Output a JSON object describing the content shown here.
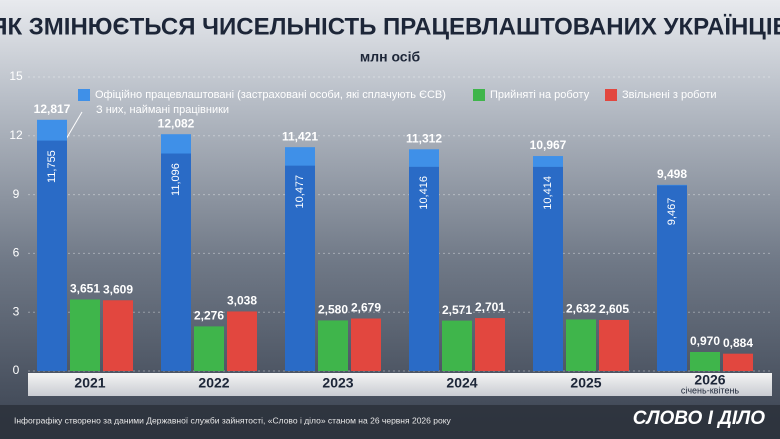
{
  "chart_data": {
    "type": "bar",
    "title": "ЯК ЗМІНЮЄТЬСЯ ЧИСЕЛЬНІСТЬ ПРАЦЕВЛАШТОВАНИХ УКРАЇНЦІВ",
    "subtitle": "млн осіб",
    "categories": [
      "2021",
      "2022",
      "2023",
      "2024",
      "2025",
      "2026"
    ],
    "x_sublabels": [
      null,
      null,
      null,
      null,
      null,
      "січень-квітень"
    ],
    "ylim": [
      0,
      15
    ],
    "yticks": [
      0,
      3,
      6,
      9,
      12,
      15
    ],
    "grid": true,
    "series": [
      {
        "name": "Офіційно працевлаштовані (застраховані особи, які сплачують ЄСВ)",
        "color": "#3f90e8",
        "values": [
          12.817,
          12.082,
          11.421,
          11.312,
          10.967,
          9.498
        ],
        "value_labels": [
          "12,817",
          "12,082",
          "11,421",
          "11,312",
          "10,967",
          "9,498"
        ]
      },
      {
        "name": "З них, наймані працівники",
        "color": "#2a6bc6",
        "overlay": true,
        "values": [
          11.755,
          11.096,
          10.477,
          10.416,
          10.414,
          9.467
        ],
        "value_labels": [
          "11,755",
          "11,096",
          "10,477",
          "10,416",
          "10,414",
          "9,467"
        ]
      },
      {
        "name": "Прийняті на роботу",
        "color": "#3fb54b",
        "values": [
          3.651,
          2.276,
          2.58,
          2.571,
          2.632,
          0.97
        ],
        "value_labels": [
          "3,651",
          "2,276",
          "2,580",
          "2,571",
          "2,632",
          "0,970"
        ]
      },
      {
        "name": "Звільнені з роботи",
        "color": "#e2473f",
        "values": [
          3.609,
          3.038,
          2.679,
          2.701,
          2.605,
          0.884
        ],
        "value_labels": [
          "3,609",
          "3,038",
          "2,679",
          "2,701",
          "2,605",
          "0,884"
        ]
      }
    ],
    "footnote": "Інфографіку створено за даними Державної служби зайнятості, «Слово і діло» станом на 26 червня 2026 року",
    "logo": "СЛОВО І ДІЛО"
  }
}
